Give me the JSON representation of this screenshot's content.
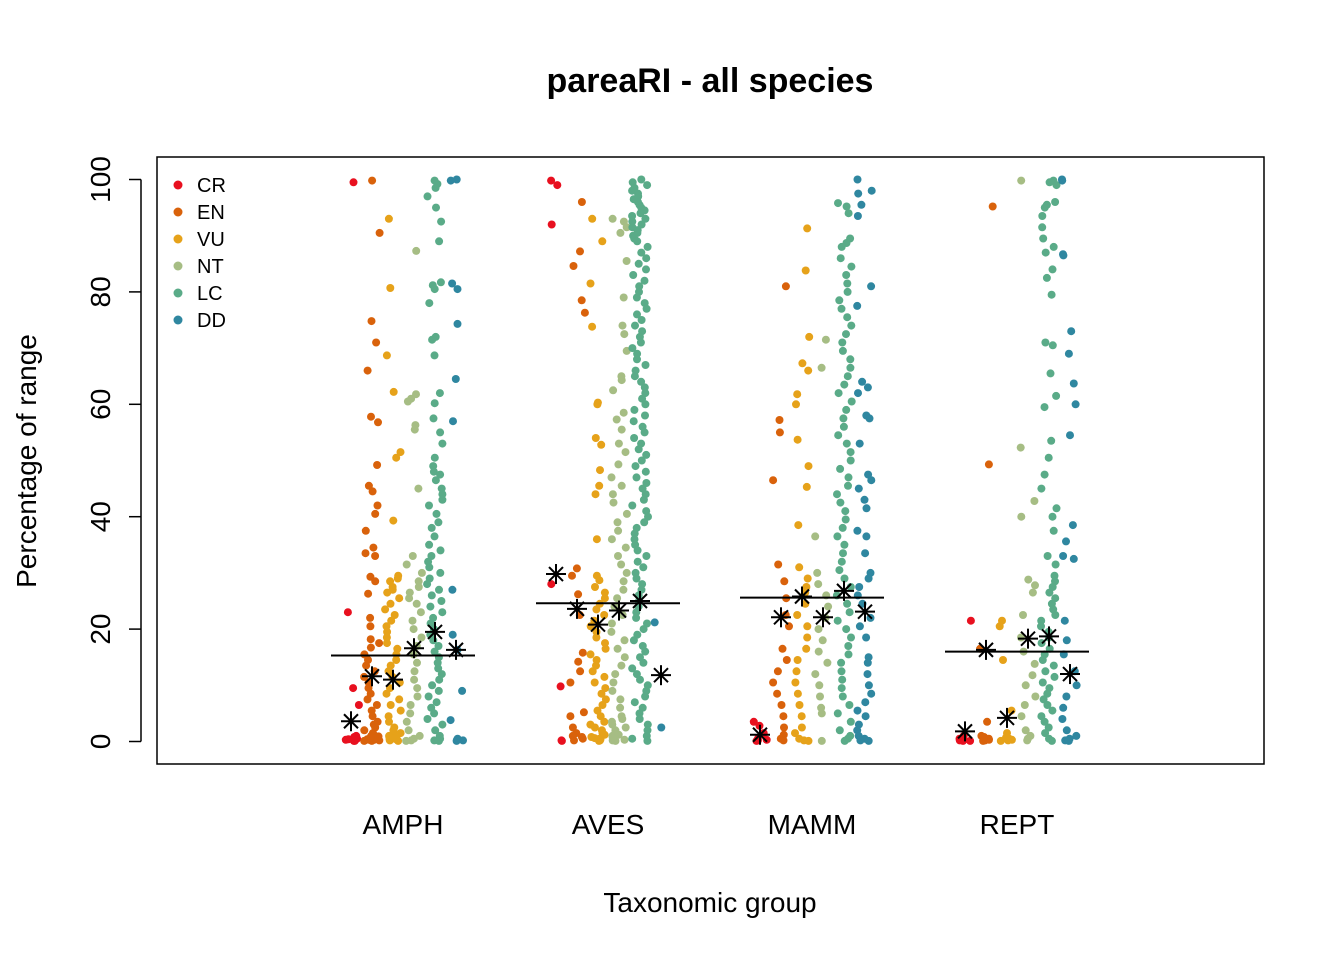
{
  "chart_data": {
    "type": "scatter",
    "title": "pareaRI - all species",
    "xlabel": "Taxonomic group",
    "ylabel": "Percentage of range",
    "ylim": [
      -4,
      104
    ],
    "yticks": [
      0,
      20,
      40,
      60,
      80,
      100
    ],
    "categories": [
      "AMPH",
      "AVES",
      "MAMM",
      "REPT"
    ],
    "legend": {
      "placement": "top-left",
      "entries": [
        {
          "label": "CR",
          "color": "#e8101f"
        },
        {
          "label": "EN",
          "color": "#d9620b"
        },
        {
          "label": "VU",
          "color": "#e6a21a"
        },
        {
          "label": "NT",
          "color": "#a6bd84"
        },
        {
          "label": "LC",
          "color": "#5aab88"
        },
        {
          "label": "DD",
          "color": "#2f87a0"
        }
      ]
    },
    "group_means": {
      "AMPH": 15.3,
      "AVES": 24.6,
      "MAMM": 25.6,
      "REPT": 16.0
    },
    "subgroup_means": {
      "AMPH": {
        "CR": 3.6,
        "EN": 11.6,
        "VU": 11.0,
        "NT": 16.6,
        "LC": 19.5,
        "DD": 16.3
      },
      "AVES": {
        "CR": 29.8,
        "EN": 23.6,
        "VU": 20.8,
        "NT": 23.3,
        "LC": 25.0,
        "DD": 11.8
      },
      "MAMM": {
        "CR": 1.2,
        "EN": 22.1,
        "VU": 25.8,
        "NT": 22.1,
        "LC": 26.8,
        "DD": 23.1
      },
      "REPT": {
        "CR": 1.8,
        "EN": 16.3,
        "VU": 4.2,
        "NT": 18.3,
        "LC": 18.7,
        "DD": 12.0
      }
    },
    "series": [
      {
        "name": "CR",
        "points": {
          "AMPH": [
            99.5,
            23,
            9.5,
            6.5,
            0.1,
            0.2,
            0.3,
            0.5,
            0.8,
            1.0,
            0.1,
            0.4,
            0.6
          ],
          "AVES": [
            99.8,
            99,
            92,
            28,
            9.8,
            0.1,
            0.2
          ],
          "MAMM": [
            3.5,
            2.8,
            1.5,
            0.5,
            0.1,
            0.2,
            0.3
          ],
          "REPT": [
            21.5,
            1.0,
            0.3,
            0.1,
            0.2,
            0.5,
            0.6,
            0.1
          ]
        }
      },
      {
        "name": "EN",
        "points": {
          "AMPH": [
            99.8,
            90.5,
            74.8,
            71,
            66,
            57.8,
            56.8,
            49.2,
            45.5,
            44.5,
            42,
            40.5,
            37.5,
            34.5,
            33.5,
            33,
            29.3,
            28.5,
            26.3,
            22,
            20.5,
            18.2,
            17.5,
            16.7,
            15.5,
            14.5,
            13.5,
            12.5,
            11.5,
            10.5,
            9.5,
            8.5,
            7.5,
            6.5,
            5.5,
            4.5,
            3.5,
            3.0,
            2.5,
            2.0,
            1.5,
            1.0,
            0.8,
            0.5,
            0.3,
            0.1,
            0.2,
            0.4,
            0.6,
            0.9,
            1.2,
            0.1,
            0.3,
            0.5,
            0.7
          ],
          "AVES": [
            96,
            87.2,
            84.6,
            78.5,
            76.3,
            30.8,
            29.5,
            26.2,
            22.5,
            15.8,
            14.2,
            12.5,
            10.5,
            5.2,
            4.5,
            2.5,
            1.5,
            0.8,
            0.2,
            0.5,
            1.0
          ],
          "MAMM": [
            81,
            57.2,
            55,
            46.5,
            31.5,
            28.5,
            25.5,
            22.5,
            20.5,
            16.5,
            14.5,
            12.5,
            10.5,
            8.5,
            6.5,
            4.5,
            2.5,
            1.2,
            0.5,
            0.2
          ],
          "REPT": [
            95.2,
            49.3,
            16.5,
            3.5,
            1.0,
            0.5,
            0.2,
            0.1,
            0.3,
            0.6,
            0.8
          ]
        }
      },
      {
        "name": "VU",
        "points": {
          "AMPH": [
            93,
            80.7,
            68.7,
            62.2,
            51.5,
            50.5,
            39.3,
            29.5,
            29.0,
            28.5,
            27.5,
            27.0,
            26.5,
            25.5,
            24.5,
            23.5,
            22.5,
            21.5,
            20.5,
            19.5,
            18.5,
            17.5,
            16.5,
            15.5,
            14.5,
            13.5,
            12.5,
            11.5,
            10.5,
            9.5,
            8.5,
            7.5,
            6.5,
            5.5,
            4.5,
            3.5,
            2.5,
            1.5,
            1.0,
            0.5,
            0.2,
            0.1,
            0.3,
            0.7,
            1.2,
            2.0,
            0.4,
            0.6,
            0.8
          ],
          "AVES": [
            93,
            89,
            81.5,
            73.8,
            60.3,
            60.0,
            54,
            52.8,
            48.3,
            45.5,
            44,
            36,
            29.5,
            28.7,
            27.5,
            26.5,
            25.5,
            24.5,
            23.5,
            22.5,
            21.5,
            20.5,
            19.5,
            18.5,
            17.5,
            16.5,
            15.5,
            14.5,
            13.5,
            12.5,
            11.5,
            10.5,
            9.5,
            8.5,
            7.5,
            6.5,
            5.5,
            4.5,
            3.5,
            2.5,
            1.5,
            0.5,
            0.2,
            0.1,
            0.8,
            1.2,
            2.0,
            3.0,
            0.4,
            0.6
          ],
          "MAMM": [
            91.3,
            83.8,
            72,
            67.3,
            66,
            61.8,
            60,
            53.7,
            49,
            45.3,
            38.5,
            31,
            29,
            27.5,
            26.5,
            24.5,
            22.5,
            20.5,
            18.5,
            16.5,
            14.5,
            12.5,
            10.5,
            8.5,
            6.5,
            4.5,
            2.5,
            1.5,
            0.5,
            0.2,
            0.1
          ],
          "REPT": [
            21.5,
            20.5,
            14.5,
            5.5,
            1.5,
            0.5,
            0.2,
            0.1,
            0.3,
            0.7
          ]
        }
      },
      {
        "name": "NT",
        "points": {
          "AMPH": [
            87.3,
            61.8,
            61.0,
            60.5,
            56.3,
            55.5,
            45,
            33,
            31.5,
            30,
            28.5,
            27.5,
            26.5,
            25.5,
            24.5,
            23,
            21.5,
            20,
            18.5,
            17,
            15.5,
            14,
            12.5,
            11,
            9.5,
            8,
            6.5,
            5,
            3.5,
            2,
            1,
            0.5,
            0.2,
            0.1
          ],
          "AVES": [
            93,
            91.5,
            92.5,
            90.5,
            85.5,
            79,
            74,
            72.5,
            69.5,
            65,
            64.3,
            62.5,
            58.5,
            57.3,
            55.5,
            53,
            51.5,
            49.3,
            47,
            45.5,
            44,
            42.5,
            40.5,
            39,
            37.5,
            36,
            34.5,
            33,
            31.5,
            30,
            28.5,
            27,
            25.5,
            24,
            22.5,
            21,
            19.5,
            18,
            16.5,
            15,
            13.5,
            12,
            10.5,
            9,
            7.5,
            6,
            4.5,
            3,
            2,
            1.5,
            1,
            0.5,
            0.2,
            0.1,
            0.3,
            0.7,
            1.2,
            2.5,
            3.5,
            4.0
          ],
          "MAMM": [
            71.5,
            66.5,
            36.5,
            30,
            28,
            26,
            24,
            22,
            20,
            18,
            16,
            14,
            12,
            10,
            8,
            6,
            5,
            0.1
          ],
          "REPT": [
            99.8,
            52.3,
            42.8,
            40,
            28.8,
            27.8,
            26.5,
            22.5,
            18.5,
            16,
            13.8,
            11.8,
            10,
            8,
            6.5,
            4.5,
            2,
            1,
            0.5,
            0.2
          ]
        }
      },
      {
        "name": "LC",
        "points": {
          "AMPH": [
            99.8,
            99.2,
            98.5,
            97,
            95,
            92.5,
            89,
            81.7,
            81.2,
            80.5,
            78,
            72,
            71.5,
            68.7,
            62,
            60.2,
            57.5,
            55,
            53,
            50.5,
            49,
            48,
            47.5,
            46.5,
            45,
            44,
            43,
            42,
            40.5,
            39,
            38,
            36.5,
            35,
            34,
            33,
            32,
            31,
            30,
            29,
            28,
            27,
            26,
            25,
            24,
            23,
            22,
            21,
            20,
            19,
            18,
            17,
            16,
            15,
            14,
            13,
            12,
            11,
            10,
            9,
            8,
            7,
            6,
            5,
            4,
            3,
            2,
            1,
            0.5,
            0.2,
            0.1
          ],
          "AVES": [
            100,
            99.5,
            99,
            98.5,
            98,
            97.5,
            97,
            96.5,
            96,
            95.5,
            95,
            94.5,
            94,
            93.5,
            93,
            92.5,
            92,
            91.5,
            91,
            90.5,
            90,
            89.5,
            89,
            88,
            87,
            86,
            85,
            84,
            83,
            82,
            81,
            80,
            79,
            78,
            77,
            76,
            75,
            74,
            73,
            72,
            71,
            70,
            69,
            68,
            67,
            66,
            65,
            64,
            63,
            62,
            61,
            60,
            59,
            58,
            57,
            56,
            55,
            54,
            53,
            52,
            51,
            50,
            49,
            48,
            47,
            46,
            45,
            44,
            43,
            42,
            41,
            40,
            39,
            38,
            37,
            36,
            35,
            34,
            33,
            32,
            31,
            30,
            29,
            28,
            27,
            26,
            25,
            24,
            23,
            22,
            21,
            20,
            19,
            18,
            17,
            16,
            15,
            14,
            13,
            12,
            11,
            10,
            9,
            8,
            7,
            6,
            5,
            4,
            3,
            2,
            1,
            0.5,
            0.1
          ],
          "MAMM": [
            95.8,
            95.2,
            94,
            89.5,
            88.7,
            88,
            86,
            84.5,
            83,
            81.5,
            80,
            78.5,
            77,
            75.5,
            74,
            72.5,
            71,
            69.5,
            68,
            66.5,
            65,
            63.5,
            62,
            60.5,
            59,
            57.5,
            56,
            54.5,
            53,
            51.5,
            50,
            48.5,
            47,
            45.5,
            44,
            42.5,
            41,
            39.5,
            38,
            36.5,
            35,
            33.5,
            32,
            30.5,
            29,
            27.5,
            26,
            24.5,
            23,
            21.5,
            20,
            18.5,
            17,
            15.5,
            14,
            12.5,
            11,
            9.5,
            8,
            6.5,
            5,
            3.5,
            2,
            1,
            0.5,
            0.1
          ],
          "REPT": [
            99.8,
            99.5,
            99,
            96,
            95.5,
            95,
            93.5,
            91.5,
            89.5,
            88,
            87,
            84,
            82.5,
            79.5,
            71,
            70.5,
            65.5,
            61.5,
            59.5,
            53.5,
            50.5,
            47.5,
            45,
            41.5,
            40,
            37.5,
            33,
            31.5,
            29.5,
            28.5,
            27.5,
            26.5,
            25.5,
            24.5,
            23.5,
            22.5,
            21.5,
            20.5,
            19.5,
            18.5,
            17.5,
            16.5,
            15.5,
            14.5,
            13.5,
            12.5,
            11.5,
            10.5,
            9.5,
            8.5,
            7.5,
            6.5,
            5.5,
            4.5,
            3.5,
            2.5,
            1.5,
            0.5,
            0.1
          ]
        }
      },
      {
        "name": "DD",
        "points": {
          "AMPH": [
            100,
            99.8,
            81.5,
            80.5,
            74.3,
            64.5,
            57,
            27,
            19,
            16.3,
            9,
            3.8,
            0.5,
            0.2,
            0.1,
            0.3
          ],
          "AVES": [
            21.2,
            2.5
          ],
          "MAMM": [
            100,
            98,
            97.5,
            95.5,
            93.5,
            81,
            77.5,
            64,
            63,
            62,
            58,
            57.5,
            53,
            47.5,
            46.5,
            45,
            43,
            41.5,
            37.5,
            36.5,
            33.5,
            30,
            29,
            27.5,
            26,
            24.5,
            22,
            20.5,
            18.5,
            15,
            14,
            12,
            10,
            8.5,
            7,
            5.5,
            4.5,
            3,
            2,
            1,
            0.5,
            0.2,
            0.1
          ],
          "REPT": [
            100,
            99.8,
            86.7,
            86.5,
            73,
            69,
            63.7,
            60,
            54.5,
            38.5,
            35.6,
            33,
            32.5,
            21.5,
            18,
            15.5,
            12.5,
            10,
            8,
            6,
            4,
            2,
            1,
            0.5,
            0.2,
            0.1
          ]
        }
      }
    ]
  }
}
